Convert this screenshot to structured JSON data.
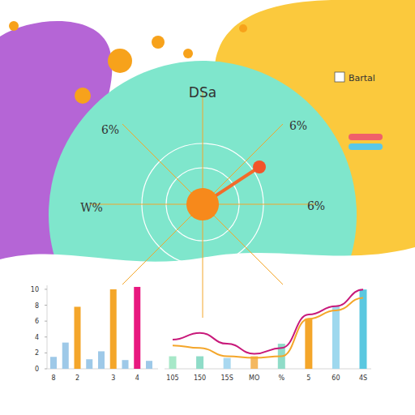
{
  "chart_data": [
    {
      "type": "bar",
      "categories": [
        "8",
        null,
        "2",
        null,
        null,
        "3",
        null,
        "4",
        null
      ],
      "values": [
        1.5,
        3.3,
        7.8,
        1.2,
        2.2,
        10,
        1.1,
        10.3,
        1
      ],
      "colors": [
        "#9ec9e8",
        "#9ec9e8",
        "#f4a62a",
        "#9ec9e8",
        "#9ec9e8",
        "#f4a62a",
        "#9ec9e8",
        "#e8187f",
        "#9ec9e8"
      ],
      "ylim": [
        0,
        10.5
      ],
      "yticks": [
        0,
        2,
        4,
        6,
        8,
        10
      ]
    },
    {
      "type": "bar",
      "categories": [
        "105",
        "150",
        "15S",
        "MO",
        "%",
        "5",
        "60",
        "4S"
      ],
      "series": [
        {
          "type": "bar",
          "colors": [
            "#a7e8c8",
            "#8fdcc8",
            "#a9d8f0",
            "#f4b860",
            "#8fdcc8",
            "#f4a62a",
            "#9ed8ee",
            "#5ac8e0"
          ],
          "values": [
            1.5,
            1.5,
            1.3,
            1.5,
            3,
            6,
            7.5,
            9.5
          ]
        },
        {
          "type": "line",
          "color": "#c8197a",
          "values": [
            3.5,
            4.3,
            3,
            1.8,
            2.5,
            6.5,
            7.5,
            9.5
          ]
        },
        {
          "type": "line",
          "color": "#f4a62a",
          "values": [
            2.8,
            2.5,
            1.5,
            1.3,
            1.5,
            6,
            7,
            8.5
          ]
        }
      ],
      "ylim": [
        0,
        10
      ],
      "tick_labels": "x"
    }
  ],
  "gauge": {
    "title": "DSa",
    "labels": [
      "6%",
      "6%",
      "W%",
      "6%"
    ],
    "key": {
      "title": "Bartal",
      "colors": [
        "#f0606a",
        "#5ac8e8"
      ]
    }
  }
}
